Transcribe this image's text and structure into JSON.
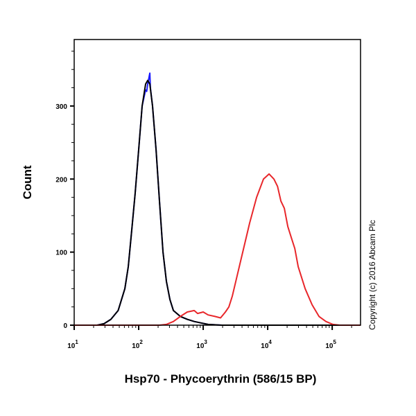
{
  "chart_data": {
    "type": "line",
    "title": "",
    "xlabel": "Hsp70 - Phycoerythrin (586/15 BP)",
    "ylabel": "Count",
    "xscale": "log",
    "xlim": [
      10,
      275000
    ],
    "ylim": [
      0,
      391
    ],
    "grid": false,
    "legend": "none",
    "y_ticks": [
      0,
      100,
      200,
      300
    ],
    "x_ticks": [
      {
        "base": "10",
        "exp": "1"
      },
      {
        "base": "10",
        "exp": "2"
      },
      {
        "base": "10",
        "exp": "3"
      },
      {
        "base": "10",
        "exp": "4"
      },
      {
        "base": "10",
        "exp": "5"
      }
    ],
    "series": [
      {
        "color": "#1a1aff",
        "x": [
          10,
          22.7,
          29,
          37,
          48,
          61,
          69,
          78,
          88,
          100,
          113,
          128,
          133,
          138,
          149,
          152,
          164,
          186,
          210,
          238,
          269,
          305,
          345,
          442,
          566,
          725,
          929,
          1190,
          1950,
          275000
        ],
        "y": [
          0,
          0,
          2,
          8,
          20,
          50,
          80,
          130,
          180,
          240,
          300,
          322,
          320,
          330,
          345,
          325,
          300,
          240,
          170,
          100,
          60,
          35,
          20,
          12,
          8,
          5,
          3,
          1,
          0,
          0
        ]
      },
      {
        "color": "#000000",
        "x": [
          10,
          22.7,
          29,
          37,
          48,
          61,
          69,
          78,
          88,
          100,
          113,
          128,
          138,
          149,
          164,
          186,
          210,
          238,
          269,
          305,
          345,
          442,
          566,
          725,
          929,
          1190,
          1950,
          275000
        ],
        "y": [
          0,
          0,
          2,
          8,
          20,
          50,
          80,
          130,
          180,
          240,
          300,
          330,
          335,
          330,
          300,
          240,
          170,
          100,
          60,
          35,
          20,
          12,
          8,
          5,
          3,
          1,
          0,
          0
        ]
      },
      {
        "color": "#e8262a",
        "x": [
          10,
          210,
          269,
          345,
          442,
          566,
          725,
          820,
          1000,
          1190,
          1520,
          1860,
          2210,
          2500,
          2830,
          3200,
          4100,
          5250,
          6730,
          8610,
          10500,
          12500,
          14200,
          16000,
          18100,
          20500,
          23200,
          26300,
          29700,
          38100,
          48800,
          62500,
          80000,
          102500,
          131000,
          275000
        ],
        "y": [
          0,
          0,
          1,
          5,
          12,
          18,
          20,
          16,
          18,
          14,
          12,
          10,
          18,
          25,
          40,
          60,
          100,
          140,
          175,
          200,
          207,
          200,
          190,
          170,
          160,
          135,
          120,
          105,
          80,
          50,
          28,
          12,
          5,
          1,
          0,
          0
        ]
      }
    ]
  },
  "copyright": "Copyright (c) 2016 Abcam Plc"
}
